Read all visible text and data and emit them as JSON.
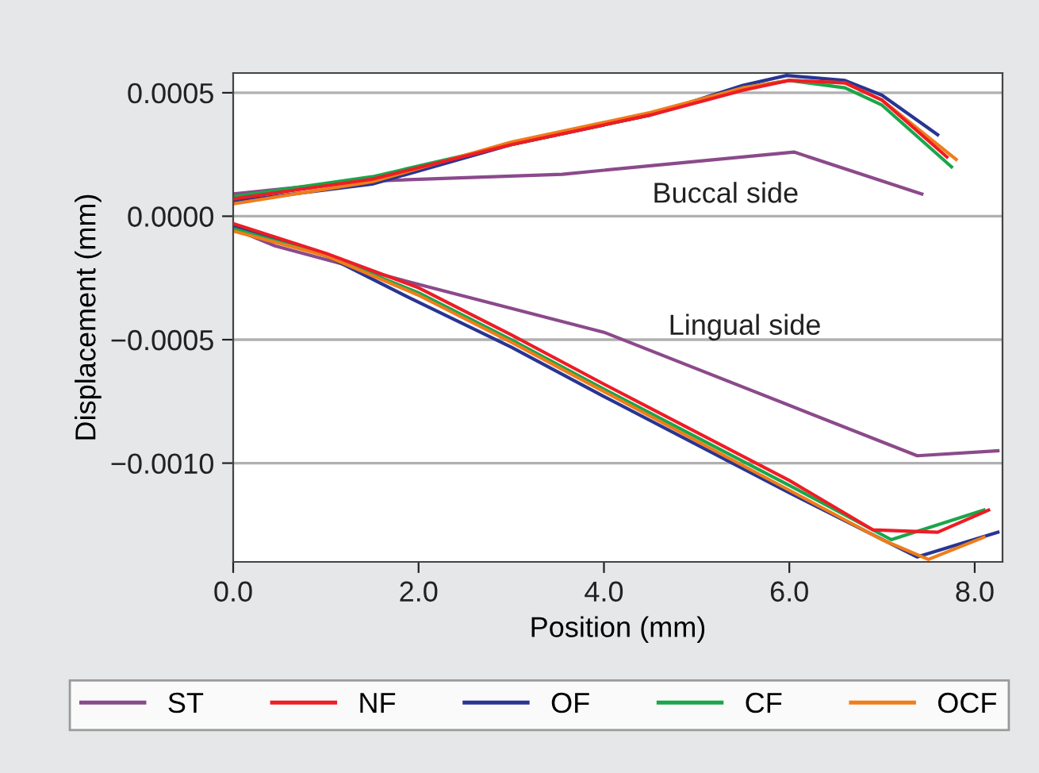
{
  "chart_data": {
    "type": "line",
    "xlabel": "Position (mm)",
    "ylabel": "Displacement (mm)",
    "xlim": [
      0,
      8.3
    ],
    "ylim": [
      -0.0014,
      0.00058
    ],
    "xticks": [
      {
        "value": 0,
        "label": "0.0"
      },
      {
        "value": 2,
        "label": "2.0"
      },
      {
        "value": 4,
        "label": "4.0"
      },
      {
        "value": 6,
        "label": "6.0"
      },
      {
        "value": 8,
        "label": "8.0"
      }
    ],
    "yticks": [
      {
        "value": -0.001,
        "label": "−0.0010"
      },
      {
        "value": -0.0005,
        "label": "−0.0005"
      },
      {
        "value": 0,
        "label": "0.0000"
      },
      {
        "value": 0.0005,
        "label": "0.0005"
      }
    ],
    "grid": "y",
    "legend": "bottom",
    "marker": "none",
    "line_style": "solid",
    "annotations": [
      "Buccal side",
      "Lingual side"
    ],
    "series": [
      {
        "name": "ST",
        "color": "#8b4a8b",
        "x": [
          0,
          1.3,
          3.55,
          6.05,
          7.43,
          null,
          0,
          0.45,
          1.94,
          4.0,
          7.38,
          8.25
        ],
        "values": [
          9e-05,
          0.00014,
          0.00017,
          0.00026,
          9e-05,
          null,
          -5e-05,
          -0.00012,
          -0.00027,
          -0.00047,
          -0.00097,
          -0.00095
        ]
      },
      {
        "name": "NF",
        "color": "#ee1c25",
        "x": [
          0,
          1.5,
          3.0,
          4.5,
          5.5,
          6.0,
          6.6,
          7.0,
          7.7,
          null,
          0,
          1.0,
          2.0,
          3.0,
          4.0,
          6.0,
          6.9,
          7.6,
          8.15
        ],
        "values": [
          7e-05,
          0.00015,
          0.00029,
          0.00041,
          0.00051,
          0.00055,
          0.00054,
          0.00047,
          0.00024,
          null,
          -3e-05,
          -0.00015,
          -0.00029,
          -0.00048,
          -0.00068,
          -0.00107,
          -0.00127,
          -0.00128,
          -0.00119
        ]
      },
      {
        "name": "OF",
        "color": "#283593",
        "x": [
          0,
          1.5,
          3.0,
          4.5,
          5.5,
          5.97,
          6.6,
          7.0,
          7.6,
          null,
          0,
          1.0,
          1.9,
          3.0,
          4.0,
          6.0,
          7.38,
          8.25
        ],
        "values": [
          6e-05,
          0.00013,
          0.00029,
          0.00041,
          0.00053,
          0.00057,
          0.00055,
          0.00049,
          0.00033,
          null,
          -4e-05,
          -0.00016,
          -0.00033,
          -0.00053,
          -0.00073,
          -0.00112,
          -0.00138,
          -0.00128
        ]
      },
      {
        "name": "CF",
        "color": "#1aa64a",
        "x": [
          0,
          1.5,
          3.0,
          4.5,
          5.5,
          6.0,
          6.6,
          7.0,
          7.75,
          null,
          0,
          1.0,
          2.0,
          3.0,
          4.0,
          6.0,
          7.1,
          8.1
        ],
        "values": [
          8e-05,
          0.00016,
          0.00029,
          0.00041,
          0.00052,
          0.00055,
          0.00052,
          0.00045,
          0.0002,
          null,
          -5e-05,
          -0.00016,
          -0.00031,
          -0.0005,
          -0.0007,
          -0.00109,
          -0.00131,
          -0.00119
        ]
      },
      {
        "name": "OCF",
        "color": "#ef7d1a",
        "x": [
          0,
          1.5,
          3.0,
          4.5,
          5.5,
          6.0,
          6.6,
          7.0,
          7.8,
          null,
          0,
          1.0,
          2.0,
          3.0,
          4.0,
          6.0,
          7.0,
          7.5,
          8.1
        ],
        "values": [
          5e-05,
          0.00014,
          0.0003,
          0.00042,
          0.00052,
          0.00055,
          0.00054,
          0.00047,
          0.00023,
          null,
          -6e-05,
          -0.00016,
          -0.00032,
          -0.00051,
          -0.00071,
          -0.00111,
          -0.00131,
          -0.00139,
          -0.0013
        ]
      }
    ]
  }
}
